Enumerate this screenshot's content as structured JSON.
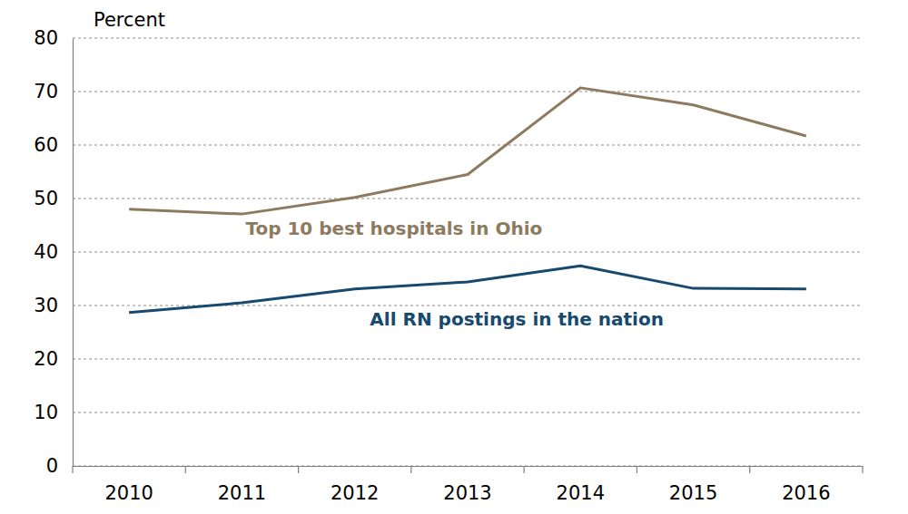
{
  "chart_data": {
    "type": "line",
    "y_label": "Percent",
    "categories": [
      "2010",
      "2011",
      "2012",
      "2013",
      "2014",
      "2015",
      "2016"
    ],
    "series": [
      {
        "name": "Top 10 best hospitals in Ohio",
        "color": "#8e7b5f",
        "values": [
          48.0,
          47.1,
          50.2,
          54.5,
          70.7,
          67.5,
          61.7
        ]
      },
      {
        "name": "All RN postings in the nation",
        "color": "#174a6e",
        "values": [
          28.7,
          30.5,
          33.1,
          34.4,
          37.4,
          33.2,
          33.1
        ]
      }
    ],
    "ylim": [
      0,
      80
    ],
    "yticks": [
      0,
      10,
      20,
      30,
      40,
      50,
      60,
      70,
      80
    ],
    "grid": true
  }
}
